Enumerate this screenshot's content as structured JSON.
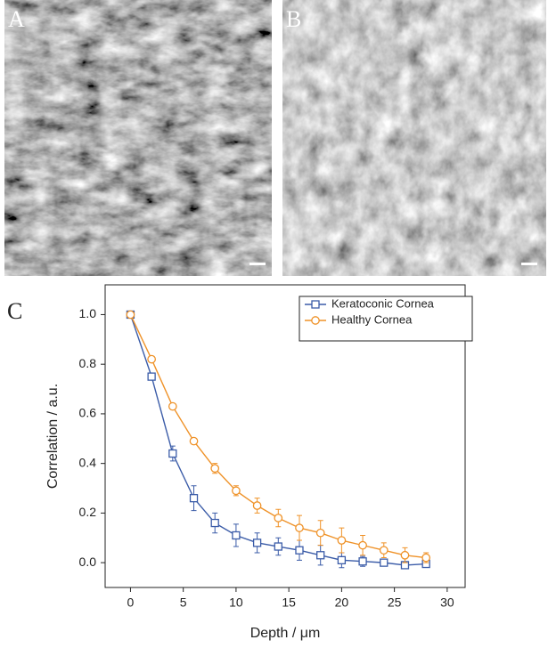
{
  "panel_labels": [
    "A",
    "B",
    "C"
  ],
  "chart_data": {
    "type": "line",
    "x_label": "Depth / μm",
    "y_label": "Correlation / a.u.",
    "x": [
      0,
      2,
      4,
      6,
      8,
      10,
      12,
      14,
      16,
      18,
      20,
      22,
      24,
      26,
      28
    ],
    "series": [
      {
        "name": "Keratoconic Cornea",
        "color": "#3b5ca8",
        "marker": "square",
        "values": [
          1.0,
          0.75,
          0.44,
          0.26,
          0.16,
          0.11,
          0.08,
          0.065,
          0.05,
          0.03,
          0.01,
          0.005,
          0.0,
          -0.01,
          -0.005
        ],
        "errors": [
          0,
          0.01,
          0.03,
          0.05,
          0.04,
          0.045,
          0.04,
          0.035,
          0.04,
          0.04,
          0.03,
          0.02,
          0.01,
          0.01,
          0.01
        ]
      },
      {
        "name": "Healthy Cornea",
        "color": "#ef9228",
        "marker": "circle",
        "values": [
          1.0,
          0.82,
          0.63,
          0.49,
          0.38,
          0.29,
          0.23,
          0.18,
          0.14,
          0.12,
          0.09,
          0.07,
          0.05,
          0.03,
          0.02
        ],
        "errors": [
          0,
          0.01,
          0.01,
          0.01,
          0.02,
          0.02,
          0.03,
          0.035,
          0.05,
          0.05,
          0.05,
          0.04,
          0.03,
          0.03,
          0.02
        ]
      }
    ],
    "xlim": [
      -2.4,
      31.7
    ],
    "ylim": [
      -0.1,
      1.12
    ],
    "xticks": [
      0,
      5,
      10,
      15,
      20,
      25,
      30
    ],
    "yticks": [
      {
        "value": 0,
        "label": "0.0"
      },
      0.2,
      0.4,
      0.6,
      0.8,
      {
        "value": 1,
        "label": "1.0"
      }
    ],
    "legend": "upper right"
  }
}
